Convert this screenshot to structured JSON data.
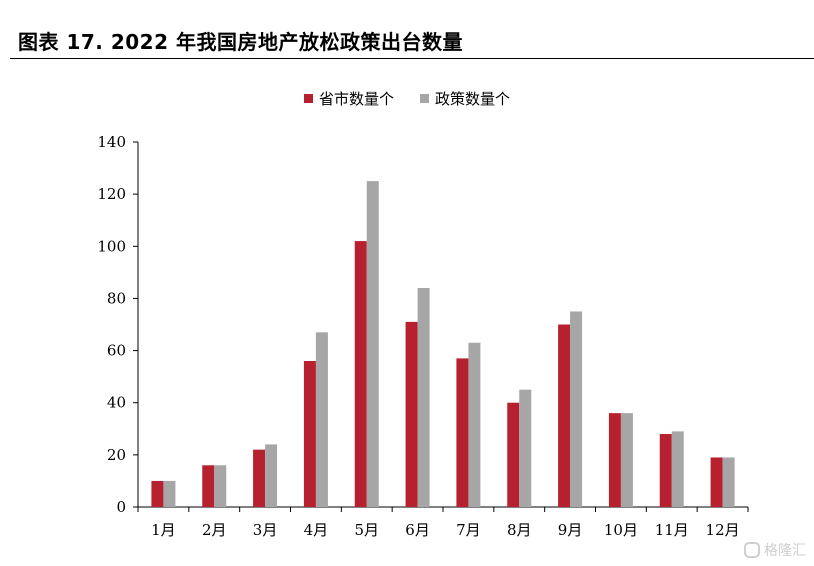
{
  "title": "图表 17. 2022 年我国房地产放松政策出台数量",
  "watermark": "格隆汇",
  "chart_data": {
    "type": "bar",
    "categories": [
      "1月",
      "2月",
      "3月",
      "4月",
      "5月",
      "6月",
      "7月",
      "8月",
      "9月",
      "10月",
      "11月",
      "12月"
    ],
    "series": [
      {
        "name": "省市数量个",
        "color": "#b7202e",
        "values": [
          10,
          16,
          22,
          56,
          102,
          71,
          57,
          40,
          70,
          36,
          28,
          19
        ]
      },
      {
        "name": "政策数量个",
        "color": "#a6a6a6",
        "values": [
          10,
          16,
          24,
          67,
          125,
          84,
          63,
          45,
          75,
          36,
          29,
          19
        ]
      }
    ],
    "xlabel": "",
    "ylabel": "",
    "ylim": [
      0,
      140
    ],
    "yticks": [
      0,
      20,
      40,
      60,
      80,
      100,
      120,
      140
    ],
    "grid": false,
    "legend_position": "top-center"
  }
}
